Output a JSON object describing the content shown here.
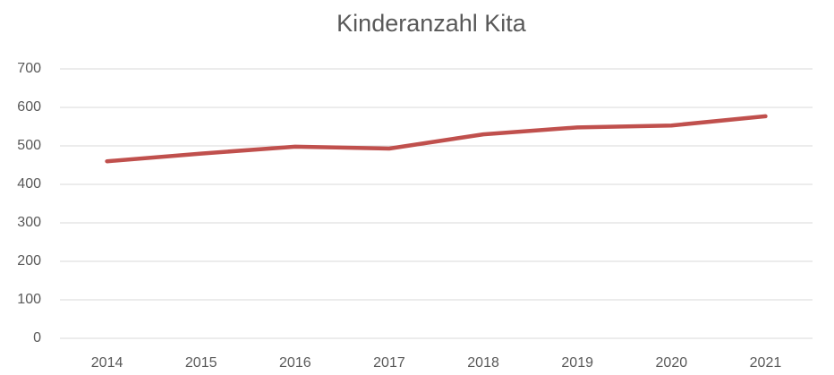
{
  "chart_data": {
    "type": "line",
    "title": "Kinderanzahl Kita",
    "categories": [
      "2014",
      "2015",
      "2016",
      "2017",
      "2018",
      "2019",
      "2020",
      "2021"
    ],
    "series": [
      {
        "name": "Kinderanzahl",
        "color": "#c0504d",
        "values": [
          460,
          480,
          498,
          493,
          530,
          548,
          553,
          577
        ]
      }
    ],
    "ylim": [
      0,
      700
    ],
    "yticks": [
      0,
      100,
      200,
      300,
      400,
      500,
      600,
      700
    ],
    "grid": true
  }
}
